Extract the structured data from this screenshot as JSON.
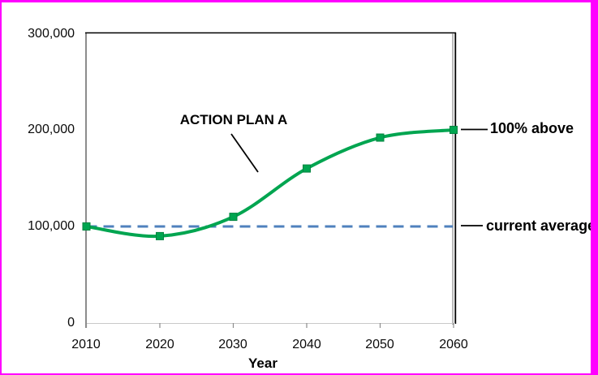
{
  "colors": {
    "frame_border": "#FF00FF",
    "series_line": "#00A550",
    "series_marker_stroke": "#00843F",
    "reference_line": "#4F81BD",
    "axis_gray": "#8C8C8C",
    "axis_light": "#C9C9C9",
    "plot_border": "#000000"
  },
  "chart_data": {
    "type": "line",
    "title": "",
    "xlabel": "Year",
    "ylabel": "",
    "x": [
      2010,
      2020,
      2030,
      2040,
      2050,
      2060
    ],
    "series": [
      {
        "name": "ACTION PLAN A",
        "values": [
          100000,
          90000,
          110000,
          160000,
          192000,
          200000
        ],
        "color": "#00A550",
        "marker": "square",
        "smooth": true
      }
    ],
    "reference_line": {
      "label": "current average",
      "value": 100000,
      "style": "dashed",
      "color": "#4F81BD"
    },
    "x_tick_labels": [
      "2010",
      "2020",
      "2030",
      "2040",
      "2050",
      "2060"
    ],
    "y_ticks": [
      0,
      100000,
      200000,
      300000
    ],
    "y_tick_labels": [
      "0",
      "100,000",
      "200,000",
      "300,000"
    ],
    "xlim": [
      2010,
      2060
    ],
    "ylim": [
      0,
      300000
    ],
    "grid": false,
    "legend": false,
    "annotations": {
      "plan_label": "ACTION PLAN A",
      "above_label": "100% above",
      "avg_label": "current average"
    }
  }
}
